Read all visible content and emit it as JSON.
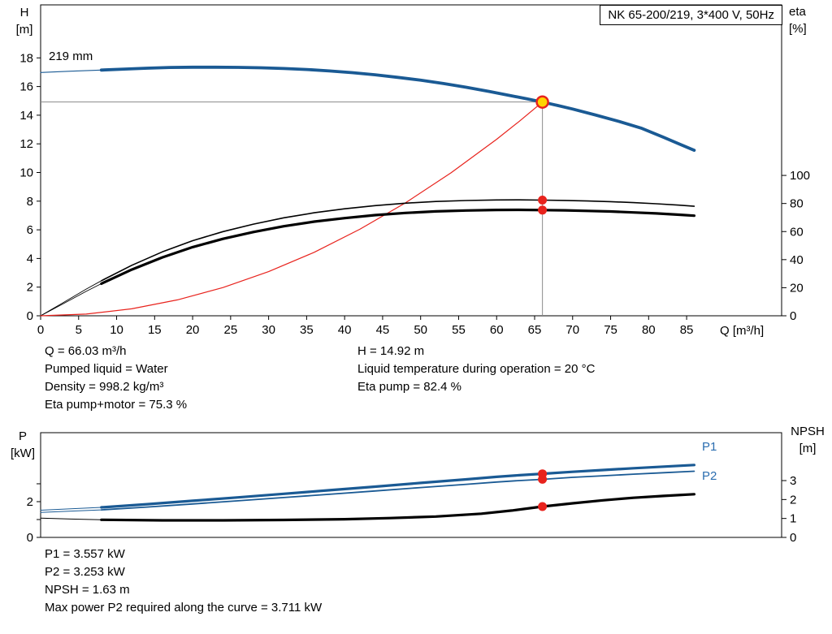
{
  "colors": {
    "curve_blue": "#1A5A94",
    "curve_black": "#000000",
    "curve_red": "#E8231D",
    "duty_fill": "#FFD500",
    "guide_gray": "#8A8A8A",
    "label_blue": "#2A6DB0"
  },
  "info_top": {
    "col1": [
      "Q = 66.03 m³/h",
      "Pumped liquid = Water",
      "Density = 998.2 kg/m³",
      "Eta pump+motor = 75.3 %"
    ],
    "col2": [
      "H = 14.92 m",
      "Liquid temperature during operation = 20 °C",
      "Eta pump = 82.4 %"
    ]
  },
  "info_bottom": [
    "P1 = 3.557 kW",
    "P2 = 3.253 kW",
    "NPSH = 1.63 m",
    "Max power P2 required along the curve = 3.711 kW"
  ],
  "chart_data": [
    {
      "type": "line",
      "title": "NK 65-200/219, 3*400 V, 50Hz",
      "curve_label": "219 mm",
      "x_axis_label": "Q [m³/h]",
      "y_left_name": "H",
      "y_left_unit": "[m]",
      "y_right_name": "eta",
      "y_right_unit": "[%]",
      "x_range": [
        0,
        97.5
      ],
      "y_left_range": [
        0,
        21.7
      ],
      "y_right_range": [
        0,
        221.5
      ],
      "x_ticks": [
        0,
        5,
        10,
        15,
        20,
        25,
        30,
        35,
        40,
        45,
        50,
        55,
        60,
        65,
        70,
        75,
        80,
        85
      ],
      "y_left_ticks": [
        0,
        2,
        4,
        6,
        8,
        10,
        12,
        14,
        16,
        18
      ],
      "y_right_ticks": [
        0,
        20,
        40,
        60,
        80,
        100
      ],
      "guides": {
        "x": 66.03,
        "y": 14.92
      },
      "series": [
        {
          "name": "head-curve-extension",
          "axis": "left",
          "color": "#1A5A94",
          "width": 1.2,
          "points": [
            [
              0,
              16.98
            ],
            [
              4,
              17.07
            ],
            [
              8,
              17.15
            ]
          ]
        },
        {
          "name": "eta-pump-curve-extension",
          "axis": "right",
          "color": "#000000",
          "width": 0.9,
          "points": [
            [
              0,
              0
            ],
            [
              3,
              9.5
            ],
            [
              6,
              19
            ],
            [
              8,
              25
            ]
          ]
        },
        {
          "name": "eta-pump-motor-curve-extension",
          "axis": "right",
          "color": "#000000",
          "width": 0.9,
          "points": [
            [
              0,
              0
            ],
            [
              3,
              8.7
            ],
            [
              6,
              17.4
            ],
            [
              8,
              22.9
            ]
          ]
        },
        {
          "name": "system-curve",
          "axis": "left",
          "color": "#E8231D",
          "width": 1.2,
          "points": [
            [
              0,
              0
            ],
            [
              6,
              0.12
            ],
            [
              12,
              0.49
            ],
            [
              18,
              1.11
            ],
            [
              24,
              1.97
            ],
            [
              30,
              3.08
            ],
            [
              36,
              4.43
            ],
            [
              42,
              6.04
            ],
            [
              48,
              7.88
            ],
            [
              54,
              9.98
            ],
            [
              60,
              12.32
            ],
            [
              63,
              13.58
            ],
            [
              66.03,
              14.92
            ]
          ]
        },
        {
          "name": "eta-pump-curve",
          "axis": "right",
          "color": "#000000",
          "width": 1.6,
          "points": [
            [
              8,
              25
            ],
            [
              12,
              36
            ],
            [
              16,
              45.5
            ],
            [
              20,
              53.5
            ],
            [
              24,
              60
            ],
            [
              28,
              65.3
            ],
            [
              32,
              69.8
            ],
            [
              36,
              73.4
            ],
            [
              40,
              76.2
            ],
            [
              44,
              78.5
            ],
            [
              48,
              80.2
            ],
            [
              52,
              81.4
            ],
            [
              56,
              82.1
            ],
            [
              60,
              82.5
            ],
            [
              63,
              82.6
            ],
            [
              66.03,
              82.4
            ],
            [
              69,
              82.2
            ],
            [
              72,
              81.8
            ],
            [
              75,
              81.3
            ],
            [
              78,
              80.6
            ],
            [
              81,
              79.8
            ],
            [
              84,
              78.8
            ],
            [
              86,
              78.0
            ]
          ]
        },
        {
          "name": "eta-pump-motor-curve",
          "axis": "right",
          "color": "#000000",
          "width": 3.2,
          "points": [
            [
              8,
              22.9
            ],
            [
              12,
              32.9
            ],
            [
              16,
              41.6
            ],
            [
              20,
              48.9
            ],
            [
              24,
              54.8
            ],
            [
              28,
              59.7
            ],
            [
              32,
              63.8
            ],
            [
              36,
              67.1
            ],
            [
              40,
              69.6
            ],
            [
              44,
              71.7
            ],
            [
              48,
              73.3
            ],
            [
              52,
              74.4
            ],
            [
              56,
              75.0
            ],
            [
              60,
              75.4
            ],
            [
              63,
              75.45
            ],
            [
              66.03,
              75.3
            ],
            [
              69,
              75.1
            ],
            [
              72,
              74.7
            ],
            [
              75,
              74.3
            ],
            [
              78,
              73.6
            ],
            [
              81,
              72.9
            ],
            [
              84,
              72.0
            ],
            [
              86,
              71.3
            ]
          ]
        },
        {
          "name": "head-curve",
          "axis": "left",
          "color": "#1A5A94",
          "width": 3.8,
          "points": [
            [
              8,
              17.15
            ],
            [
              11,
              17.22
            ],
            [
              14,
              17.28
            ],
            [
              17,
              17.33
            ],
            [
              20,
              17.35
            ],
            [
              23,
              17.35
            ],
            [
              26,
              17.34
            ],
            [
              29,
              17.31
            ],
            [
              32,
              17.26
            ],
            [
              35,
              17.19
            ],
            [
              38,
              17.09
            ],
            [
              41,
              16.97
            ],
            [
              44,
              16.82
            ],
            [
              47,
              16.64
            ],
            [
              50,
              16.44
            ],
            [
              53,
              16.21
            ],
            [
              56,
              15.95
            ],
            [
              59,
              15.66
            ],
            [
              62,
              15.35
            ],
            [
              64,
              15.14
            ],
            [
              66.03,
              14.92
            ],
            [
              68,
              14.68
            ],
            [
              70,
              14.43
            ],
            [
              73,
              14.02
            ],
            [
              76,
              13.58
            ],
            [
              79,
              13.1
            ],
            [
              82,
              12.45
            ],
            [
              84,
              12.0
            ],
            [
              86,
              11.55
            ]
          ]
        }
      ],
      "markers": [
        {
          "name": "eta-pump-point",
          "x": 66.03,
          "y": 82.4,
          "axis": "right",
          "r": 5.5,
          "fill": "#E8231D"
        },
        {
          "name": "eta-pump-motor-point",
          "x": 66.03,
          "y": 75.3,
          "axis": "right",
          "r": 5.5,
          "fill": "#E8231D"
        },
        {
          "name": "duty-point",
          "x": 66.03,
          "y": 14.92,
          "axis": "left",
          "r": 7,
          "fill": "#FFD500",
          "stroke": "#E8231D",
          "stroke_width": 2.5
        }
      ]
    },
    {
      "type": "line",
      "y_left_name": "P",
      "y_left_unit": "[kW]",
      "y_right_name": "NPSH",
      "y_right_unit": "[m]",
      "x_range": [
        0,
        97.5
      ],
      "y_left_range": [
        0,
        5.86
      ],
      "y_right_range": [
        0,
        5.53
      ],
      "x_ticks": [],
      "y_left_ticks": [
        0,
        1,
        2,
        3
      ],
      "y_left_tick_labels": [
        "0",
        "",
        "2",
        ""
      ],
      "y_right_ticks": [
        0,
        1,
        2,
        3
      ],
      "label_color": "#2A6DB0",
      "series_labels": [
        {
          "text": "P1"
        },
        {
          "text": "P2"
        }
      ],
      "series": [
        {
          "name": "p1-curve-extension",
          "axis": "left",
          "color": "#1A5A94",
          "width": 1,
          "points": [
            [
              0,
              1.52
            ],
            [
              4,
              1.6
            ],
            [
              8,
              1.68
            ]
          ]
        },
        {
          "name": "p2-curve-extension",
          "axis": "left",
          "color": "#1A5A94",
          "width": 1,
          "points": [
            [
              0,
              1.4
            ],
            [
              4,
              1.47
            ],
            [
              8,
              1.54
            ]
          ]
        },
        {
          "name": "npsh-curve-extension",
          "axis": "right",
          "color": "#000000",
          "width": 1,
          "points": [
            [
              0,
              1.02
            ],
            [
              4,
              0.97
            ],
            [
              8,
              0.93
            ]
          ]
        },
        {
          "name": "npsh-curve",
          "axis": "right",
          "color": "#000000",
          "width": 3.2,
          "points": [
            [
              8,
              0.93
            ],
            [
              16,
              0.9
            ],
            [
              24,
              0.9
            ],
            [
              32,
              0.92
            ],
            [
              40,
              0.96
            ],
            [
              46,
              1.02
            ],
            [
              52,
              1.1
            ],
            [
              58,
              1.25
            ],
            [
              62,
              1.42
            ],
            [
              66.03,
              1.63
            ],
            [
              70,
              1.8
            ],
            [
              74,
              1.96
            ],
            [
              78,
              2.09
            ],
            [
              82,
              2.19
            ],
            [
              86,
              2.28
            ]
          ]
        },
        {
          "name": "p2-curve",
          "axis": "left",
          "color": "#1A5A94",
          "width": 1.8,
          "points": [
            [
              8,
              1.54
            ],
            [
              14,
              1.7
            ],
            [
              20,
              1.87
            ],
            [
              26,
              2.05
            ],
            [
              32,
              2.23
            ],
            [
              38,
              2.41
            ],
            [
              44,
              2.6
            ],
            [
              50,
              2.79
            ],
            [
              56,
              2.97
            ],
            [
              60,
              3.1
            ],
            [
              63,
              3.18
            ],
            [
              66.03,
              3.25
            ],
            [
              70,
              3.36
            ],
            [
              74,
              3.45
            ],
            [
              78,
              3.54
            ],
            [
              82,
              3.62
            ],
            [
              86,
              3.7
            ]
          ]
        },
        {
          "name": "p1-curve",
          "axis": "left",
          "color": "#1A5A94",
          "width": 3.2,
          "points": [
            [
              8,
              1.68
            ],
            [
              14,
              1.86
            ],
            [
              20,
              2.05
            ],
            [
              26,
              2.24
            ],
            [
              32,
              2.44
            ],
            [
              38,
              2.64
            ],
            [
              44,
              2.84
            ],
            [
              50,
              3.05
            ],
            [
              56,
              3.25
            ],
            [
              60,
              3.39
            ],
            [
              63,
              3.48
            ],
            [
              66.03,
              3.56
            ],
            [
              70,
              3.67
            ],
            [
              74,
              3.77
            ],
            [
              78,
              3.87
            ],
            [
              82,
              3.96
            ],
            [
              86,
              4.05
            ]
          ]
        }
      ],
      "markers": [
        {
          "name": "p1-point",
          "x": 66.03,
          "y": 3.557,
          "axis": "left",
          "r": 5.5,
          "fill": "#E8231D"
        },
        {
          "name": "p2-point",
          "x": 66.03,
          "y": 3.253,
          "axis": "left",
          "r": 5.5,
          "fill": "#E8231D"
        },
        {
          "name": "npsh-point",
          "x": 66.03,
          "y": 1.63,
          "axis": "right",
          "r": 5.5,
          "fill": "#E8231D"
        }
      ]
    }
  ]
}
